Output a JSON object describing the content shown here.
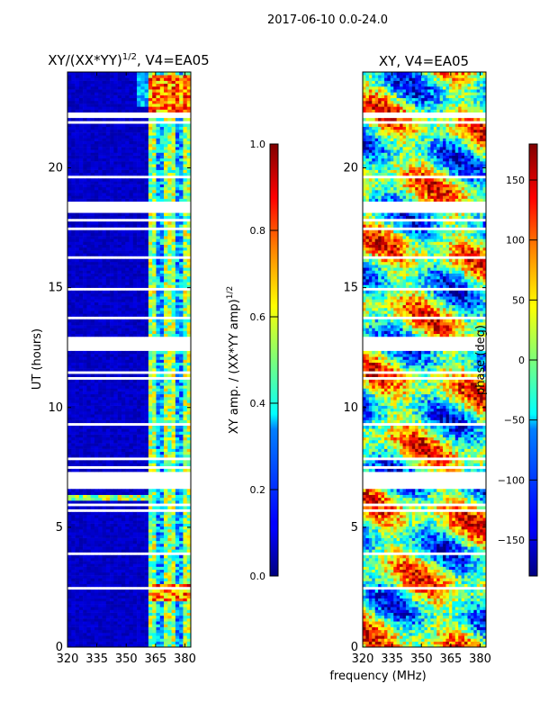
{
  "figure_title": "2017-06-10 0.0-24.0",
  "shared_xlabel": "frequency (MHz)",
  "chart_data": [
    {
      "type": "heatmap",
      "title": "XY/(XX*YY)^1/2, V4=EA05",
      "title_base": "XY/(XX*YY)",
      "title_exp": "1/2",
      "title_tail": ", V4=EA05",
      "xlabel": "frequency (MHz)",
      "ylabel": "UT (hours)",
      "xlim": [
        320,
        383
      ],
      "ylim": [
        0,
        24
      ],
      "x_ticks": [
        320,
        335,
        350,
        365,
        380
      ],
      "y_ticks": [
        0,
        5,
        10,
        15,
        20
      ],
      "colormap": "jet",
      "colorbar": {
        "label_base": "XY amp. / (XX*YY amp)",
        "label_exp": "1/2",
        "range": [
          0.0,
          1.0
        ],
        "ticks": [
          0.0,
          0.2,
          0.4,
          0.6,
          0.8,
          1.0
        ],
        "tick_labels": [
          "0.0",
          "0.2",
          "0.4",
          "0.6",
          "0.8",
          "1.0"
        ]
      },
      "features": [
        {
          "desc": "low amplitude background",
          "freq_range": [
            320,
            360
          ],
          "value": 0.05
        },
        {
          "desc": "high amplitude bands",
          "freq_range": [
            360,
            383
          ],
          "value_range": [
            0.2,
            0.9
          ]
        },
        {
          "desc": "bright strip",
          "hour_range": [
            6.0,
            6.3
          ],
          "freq_range": [
            320,
            360
          ],
          "value": 0.5
        }
      ]
    },
    {
      "type": "heatmap",
      "title": "XY, V4=EA05",
      "xlabel": "frequency (MHz)",
      "ylabel": "",
      "xlim": [
        320,
        383
      ],
      "ylim": [
        0,
        24
      ],
      "x_ticks": [
        320,
        335,
        350,
        365,
        380
      ],
      "y_ticks": [
        0,
        5,
        10,
        15,
        20
      ],
      "colormap": "jet",
      "colorbar": {
        "label": "phase (deg)",
        "range": [
          -180,
          180
        ],
        "ticks": [
          -150,
          -100,
          -50,
          0,
          50,
          100,
          150
        ],
        "tick_labels": [
          "−150",
          "−100",
          "−50",
          "0",
          "50",
          "100",
          "150"
        ]
      }
    }
  ],
  "colors": {
    "background": "#ffffff",
    "axis": "#000000",
    "gap": "#ffffff"
  }
}
